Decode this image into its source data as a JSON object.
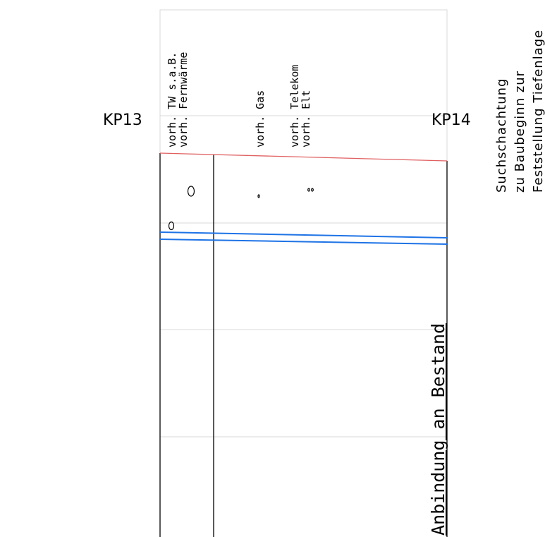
{
  "markers": {
    "left": "KP13",
    "right": "KP14"
  },
  "utility_labels": {
    "tw": "vorh. TW s.a.B.",
    "fernwaerme": "vorh. Fernwärme",
    "gas": "vorh. Gas",
    "telekom": "vorh. Telekom",
    "elt": "vorh. Elt"
  },
  "note": {
    "line1": "Suchschachtung",
    "line2": "zu Baubeginn zur",
    "line3": "Feststellung Tiefenlage"
  },
  "connection_label": "Anbindung an Bestand",
  "colors": {
    "ground_line": "#e06060",
    "pipe": "#1e73e6",
    "grid": "#d8d8d8",
    "ink": "#000000"
  }
}
